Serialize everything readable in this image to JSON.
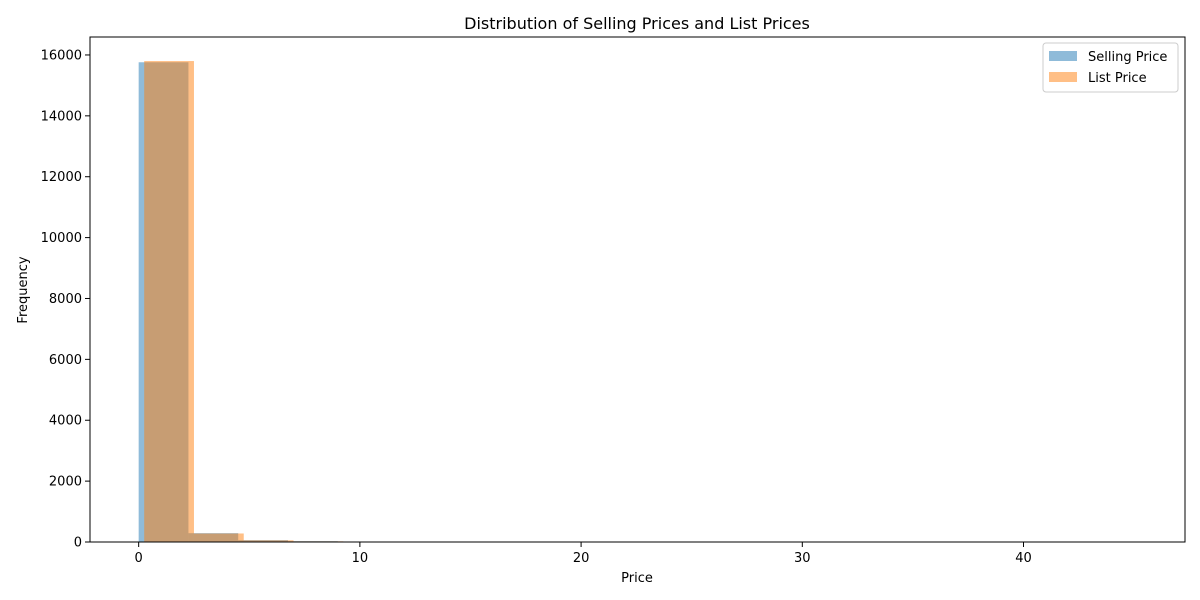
{
  "chart_data": {
    "type": "bar",
    "title": "Distribution of Selling Prices and List Prices",
    "xlabel": "Price",
    "ylabel": "Frequency",
    "xlim": [
      -2.2,
      47.3
    ],
    "ylim": [
      0,
      16590
    ],
    "xticks": [
      0,
      10,
      20,
      30,
      40
    ],
    "yticks": [
      0,
      2000,
      4000,
      6000,
      8000,
      10000,
      12000,
      14000,
      16000
    ],
    "grid": false,
    "legend_position": "top-right",
    "series": [
      {
        "name": "Selling Price",
        "color": "#1f77b4",
        "opacity": 0.5,
        "bins": [
          {
            "x0": 0.0,
            "x1": 2.25,
            "count": 15760
          },
          {
            "x0": 2.25,
            "x1": 4.5,
            "count": 290
          },
          {
            "x0": 4.5,
            "x1": 6.75,
            "count": 60
          },
          {
            "x0": 6.75,
            "x1": 9.0,
            "count": 25
          },
          {
            "x0": 9.0,
            "x1": 11.25,
            "count": 8
          },
          {
            "x0": 11.25,
            "x1": 13.5,
            "count": 4
          },
          {
            "x0": 13.5,
            "x1": 15.75,
            "count": 2
          },
          {
            "x0": 15.75,
            "x1": 18.0,
            "count": 1
          },
          {
            "x0": 18.0,
            "x1": 20.25,
            "count": 1
          },
          {
            "x0": 20.25,
            "x1": 22.5,
            "count": 0
          },
          {
            "x0": 22.5,
            "x1": 24.75,
            "count": 1
          },
          {
            "x0": 24.75,
            "x1": 27.0,
            "count": 0
          },
          {
            "x0": 27.0,
            "x1": 29.25,
            "count": 0
          },
          {
            "x0": 29.25,
            "x1": 31.5,
            "count": 1
          },
          {
            "x0": 31.5,
            "x1": 33.75,
            "count": 0
          },
          {
            "x0": 33.75,
            "x1": 36.0,
            "count": 0
          },
          {
            "x0": 36.0,
            "x1": 38.25,
            "count": 0
          },
          {
            "x0": 38.25,
            "x1": 40.5,
            "count": 0
          },
          {
            "x0": 40.5,
            "x1": 42.75,
            "count": 0
          },
          {
            "x0": 42.75,
            "x1": 45.0,
            "count": 1
          }
        ]
      },
      {
        "name": "List Price",
        "color": "#ff7f0e",
        "opacity": 0.5,
        "bins": [
          {
            "x0": 0.25,
            "x1": 2.5,
            "count": 15800
          },
          {
            "x0": 2.5,
            "x1": 4.75,
            "count": 280
          },
          {
            "x0": 4.75,
            "x1": 7.0,
            "count": 55
          },
          {
            "x0": 7.0,
            "x1": 9.25,
            "count": 22
          },
          {
            "x0": 9.25,
            "x1": 11.5,
            "count": 7
          },
          {
            "x0": 11.5,
            "x1": 13.75,
            "count": 3
          },
          {
            "x0": 13.75,
            "x1": 16.0,
            "count": 2
          },
          {
            "x0": 16.0,
            "x1": 18.25,
            "count": 1
          },
          {
            "x0": 18.25,
            "x1": 20.5,
            "count": 1
          },
          {
            "x0": 20.5,
            "x1": 22.75,
            "count": 0
          },
          {
            "x0": 22.75,
            "x1": 25.0,
            "count": 1
          },
          {
            "x0": 25.0,
            "x1": 27.25,
            "count": 0
          },
          {
            "x0": 27.25,
            "x1": 29.5,
            "count": 0
          },
          {
            "x0": 29.5,
            "x1": 31.75,
            "count": 1
          },
          {
            "x0": 31.75,
            "x1": 34.0,
            "count": 0
          },
          {
            "x0": 34.0,
            "x1": 36.25,
            "count": 0
          },
          {
            "x0": 36.25,
            "x1": 38.5,
            "count": 0
          },
          {
            "x0": 38.5,
            "x1": 40.75,
            "count": 0
          },
          {
            "x0": 40.75,
            "x1": 43.0,
            "count": 0
          },
          {
            "x0": 43.0,
            "x1": 45.25,
            "count": 1
          }
        ]
      }
    ]
  }
}
